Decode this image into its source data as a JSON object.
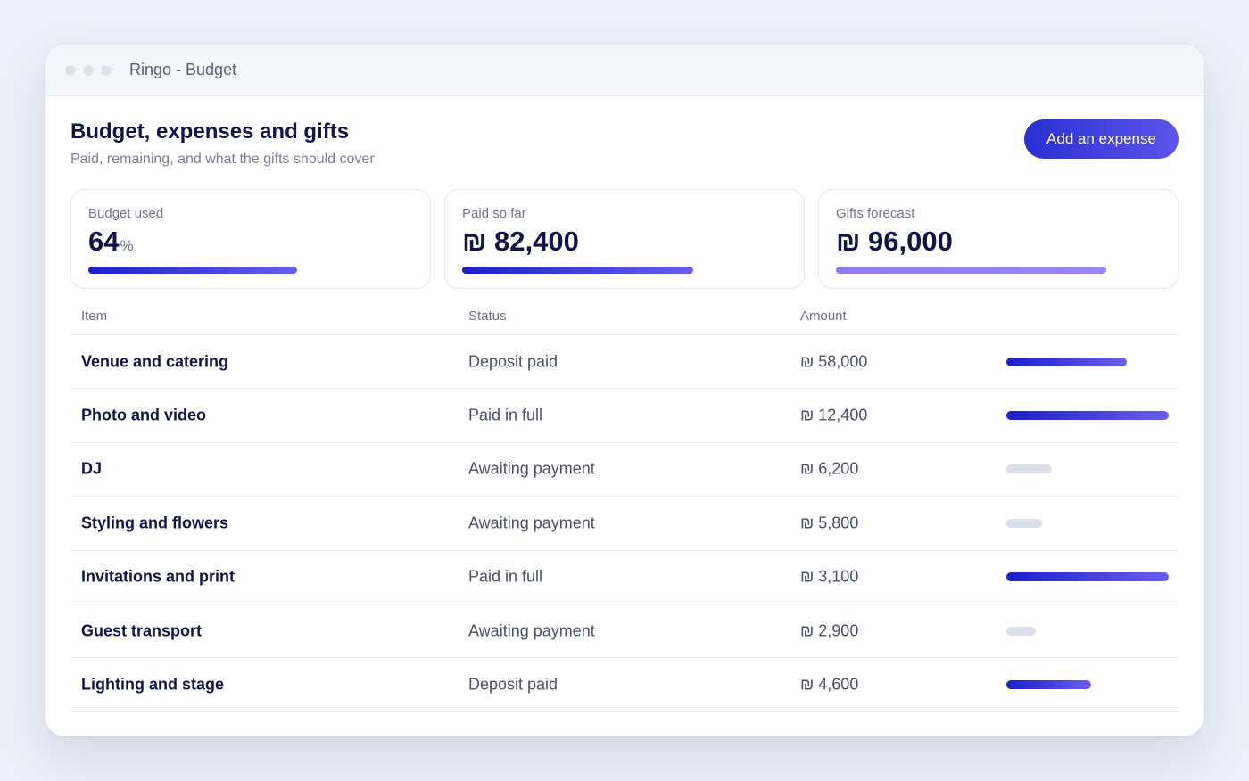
{
  "window": {
    "title": "Ringo - Budget"
  },
  "header": {
    "title": "Budget, expenses and gifts",
    "subtitle": "Paid, remaining, and what the gifts should cover",
    "add_button_label": "Add an expense"
  },
  "summary": [
    {
      "label": "Budget used",
      "value": "64",
      "unit": "%",
      "progress": 0.64,
      "style": "primary"
    },
    {
      "label": "Paid so far",
      "value": "₪ 82,400",
      "unit": "",
      "progress": 0.71,
      "style": "primary"
    },
    {
      "label": "Gifts forecast",
      "value": "₪ 96,000",
      "unit": "",
      "progress": 0.83,
      "style": "soft"
    }
  ],
  "table": {
    "columns": [
      "Item",
      "Status",
      "Amount"
    ],
    "rows": [
      {
        "item": "Venue and catering",
        "status": "Deposit paid",
        "amount": "₪ 58,000",
        "progress": 0.74,
        "state": "partial"
      },
      {
        "item": "Photo and video",
        "status": "Paid in full",
        "amount": "₪ 12,400",
        "progress": 1.0,
        "state": "paid"
      },
      {
        "item": "DJ",
        "status": "Awaiting payment",
        "amount": "₪ 6,200",
        "progress": 0.28,
        "state": "pending"
      },
      {
        "item": "Styling and flowers",
        "status": "Awaiting payment",
        "amount": "₪ 5,800",
        "progress": 0.22,
        "state": "pending"
      },
      {
        "item": "Invitations and print",
        "status": "Paid in full",
        "amount": "₪ 3,100",
        "progress": 1.0,
        "state": "paid"
      },
      {
        "item": "Guest transport",
        "status": "Awaiting payment",
        "amount": "₪ 2,900",
        "progress": 0.18,
        "state": "pending"
      },
      {
        "item": "Lighting and stage",
        "status": "Deposit paid",
        "amount": "₪ 4,600",
        "progress": 0.52,
        "state": "partial"
      }
    ]
  }
}
